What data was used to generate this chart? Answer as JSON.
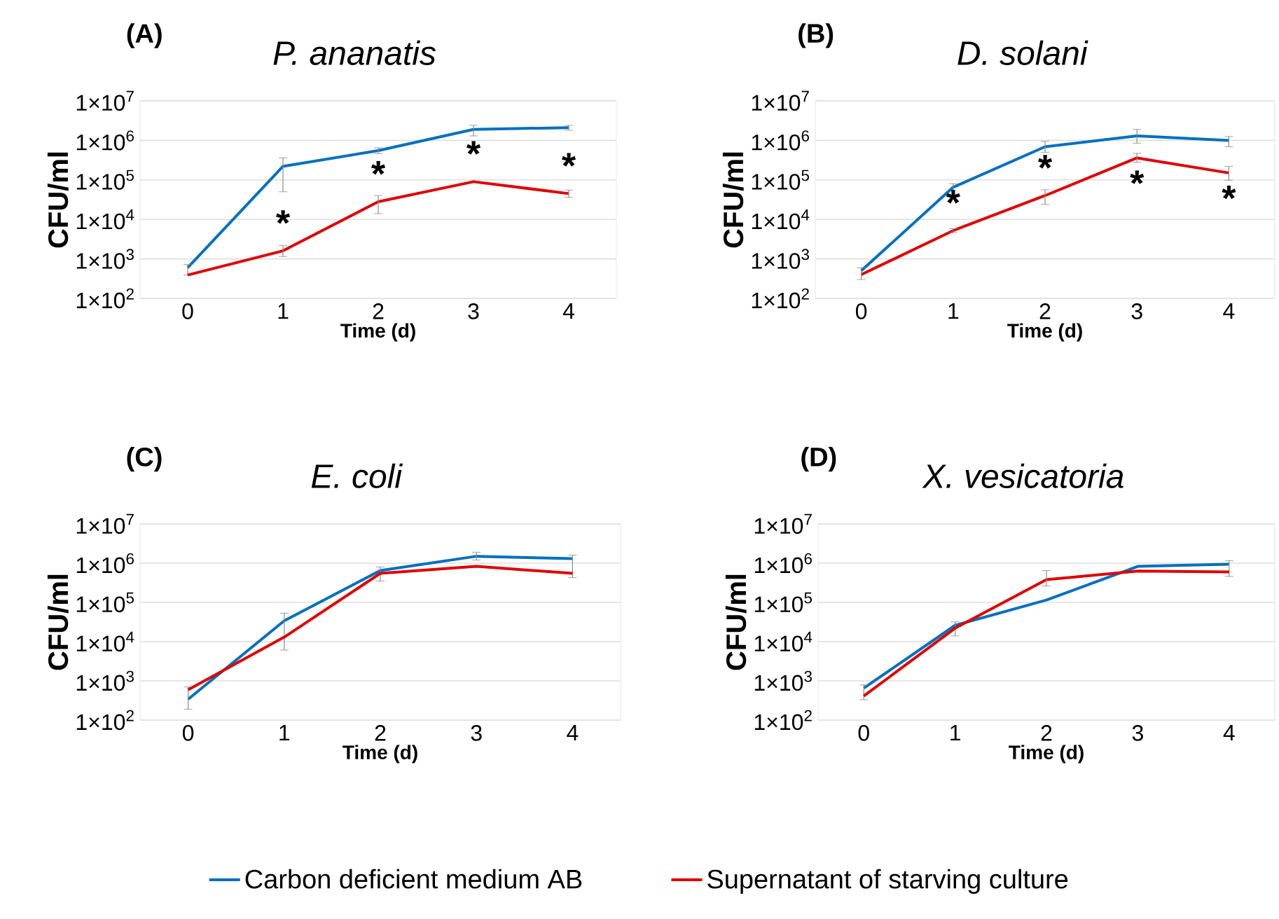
{
  "chart_data": [
    {
      "type": "line",
      "title": "P. ananatis",
      "xlabel": "Time (d)",
      "ylabel": "CFU/ml",
      "log": true,
      "grid": "y",
      "legend": "bottom",
      "marker": "none",
      "line_style": "solid",
      "x": [
        0,
        1,
        2,
        3,
        4
      ],
      "xlim": [
        -0.5,
        4.5
      ],
      "xticks": [
        0,
        1,
        2,
        3,
        4
      ],
      "ylim": [
        100,
        10000000
      ],
      "yticks": [
        {
          "value": 100,
          "label": "1×10$^{2}$"
        },
        {
          "value": 1000,
          "label": "1×10$^{3}$"
        },
        {
          "value": 10000,
          "label": "1×10$^{4}$"
        },
        {
          "value": 100000,
          "label": "1×10$^{5}$"
        },
        {
          "value": 1000000,
          "label": "1×10$^{6}$"
        },
        {
          "value": 10000000,
          "label": "1×10$^{7}$"
        }
      ],
      "series": [
        {
          "name": "Carbon deficient medium AB",
          "color": "#0070c0",
          "values": [
            600,
            220000,
            550000,
            1900000,
            2100000
          ],
          "errors": [
            [
              390,
              720
            ],
            [
              50000,
              360000
            ],
            [
              460000,
              650000
            ],
            [
              1300000,
              2400000
            ],
            [
              1800000,
              2400000
            ]
          ]
        },
        {
          "name": "Supernatant of starving culture",
          "color": "#e00000",
          "values": [
            390,
            1600,
            28000,
            90000,
            45000
          ],
          "errors": [
            null,
            [
              1150,
              2200
            ],
            [
              14000,
              40000
            ],
            null,
            [
              36000,
              55000
            ]
          ]
        }
      ],
      "annotations": [
        "(A)",
        {
          "text": "*",
          "x": 1,
          "y": 1600
        },
        {
          "text": "*",
          "x": 2,
          "y": 28000
        },
        {
          "text": "*",
          "x": 3,
          "y": 90000
        },
        {
          "text": "*",
          "x": 4,
          "y": 45000
        }
      ]
    },
    {
      "type": "line",
      "title": "D. solani",
      "xlabel": "Time (d)",
      "ylabel": "CFU/ml",
      "log": true,
      "grid": "y",
      "marker": "none",
      "line_style": "solid",
      "x": [
        0,
        1,
        2,
        3,
        4
      ],
      "xlim": [
        -0.5,
        4.5
      ],
      "xticks": [
        0,
        1,
        2,
        3,
        4
      ],
      "ylim": [
        100,
        10000000
      ],
      "yticks": [
        {
          "value": 100,
          "label": "1×10$^{2}$"
        },
        {
          "value": 1000,
          "label": "1×10$^{3}$"
        },
        {
          "value": 10000,
          "label": "1×10$^{4}$"
        },
        {
          "value": 100000,
          "label": "1×10$^{5}$"
        },
        {
          "value": 1000000,
          "label": "1×10$^{6}$"
        },
        {
          "value": 10000000,
          "label": "1×10$^{7}$"
        }
      ],
      "series": [
        {
          "color": "#0070c0",
          "values": [
            500,
            65000,
            690000,
            1300000,
            1000000
          ],
          "errors": [
            null,
            [
              43000,
              80000
            ],
            [
              500000,
              940000
            ],
            [
              850000,
              1900000
            ],
            [
              690000,
              1250000
            ]
          ]
        },
        {
          "color": "#e00000",
          "values": [
            400,
            5200,
            40000,
            360000,
            150000
          ],
          "errors": [
            [
              300,
              600
            ],
            [
              4600,
              5800
            ],
            [
              24000,
              56000
            ],
            [
              280000,
              470000
            ],
            [
              98000,
              220000
            ]
          ]
        }
      ],
      "annotations": [
        "(B)",
        {
          "text": "*",
          "x": 1,
          "y": 5200
        },
        {
          "text": "*",
          "x": 2,
          "y": 40000
        },
        {
          "text": "*",
          "x": 3,
          "y": 360000
        },
        {
          "text": "*",
          "x": 4,
          "y": 150000
        }
      ]
    },
    {
      "type": "line",
      "title": "E. coli",
      "xlabel": "Time (d)",
      "ylabel": "CFU/ml",
      "log": true,
      "grid": "y",
      "marker": "none",
      "line_style": "solid",
      "x": [
        0,
        1,
        2,
        3,
        4
      ],
      "xlim": [
        -0.5,
        4.5
      ],
      "xticks": [
        0,
        1,
        2,
        3,
        4
      ],
      "ylim": [
        100,
        10000000
      ],
      "yticks": [
        {
          "value": 100,
          "label": "1×10$^{2}$"
        },
        {
          "value": 1000,
          "label": "1×10$^{3}$"
        },
        {
          "value": 10000,
          "label": "1×10$^{4}$"
        },
        {
          "value": 100000,
          "label": "1×10$^{5}$"
        },
        {
          "value": 1000000,
          "label": "1×10$^{6}$"
        },
        {
          "value": 10000000,
          "label": "1×10$^{7}$"
        }
      ],
      "series": [
        {
          "color": "#0070c0",
          "values": [
            340,
            34000,
            650000,
            1500000,
            1300000
          ],
          "errors": [
            [
              190,
              700
            ],
            [
              6100,
              53000
            ],
            [
              350000,
              800000
            ],
            [
              1200000,
              1900000
            ],
            [
              430000,
              1600000
            ]
          ]
        },
        {
          "color": "#e00000",
          "values": [
            590,
            13000,
            550000,
            830000,
            550000
          ]
        }
      ],
      "annotations": [
        "(C)"
      ]
    },
    {
      "type": "line",
      "title": "X. vesicatoria",
      "xlabel": "Time (d)",
      "ylabel": "CFU/ml",
      "log": true,
      "grid": "y",
      "marker": "none",
      "line_style": "solid",
      "x": [
        0,
        1,
        2,
        3,
        4
      ],
      "xlim": [
        -0.5,
        4.5
      ],
      "xticks": [
        0,
        1,
        2,
        3,
        4
      ],
      "ylim": [
        100,
        10000000
      ],
      "yticks": [
        {
          "value": 100,
          "label": "1×10$^{2}$"
        },
        {
          "value": 1000,
          "label": "1×10$^{3}$"
        },
        {
          "value": 10000,
          "label": "1×10$^{4}$"
        },
        {
          "value": 100000,
          "label": "1×10$^{5}$"
        },
        {
          "value": 1000000,
          "label": "1×10$^{6}$"
        },
        {
          "value": 10000000,
          "label": "1×10$^{7}$"
        }
      ],
      "series": [
        {
          "color": "#0070c0",
          "values": [
            650,
            26000,
            115000,
            830000,
            940000
          ],
          "errors": [
            [
              330,
              790
            ],
            [
              14000,
              32000
            ],
            null,
            null,
            [
              460000,
              1150000
            ]
          ]
        },
        {
          "color": "#e00000",
          "values": [
            410,
            22000,
            380000,
            630000,
            600000
          ],
          "errors": [
            null,
            null,
            [
              260000,
              650000
            ],
            null,
            null
          ]
        }
      ],
      "annotations": [
        "(D)"
      ]
    }
  ]
}
